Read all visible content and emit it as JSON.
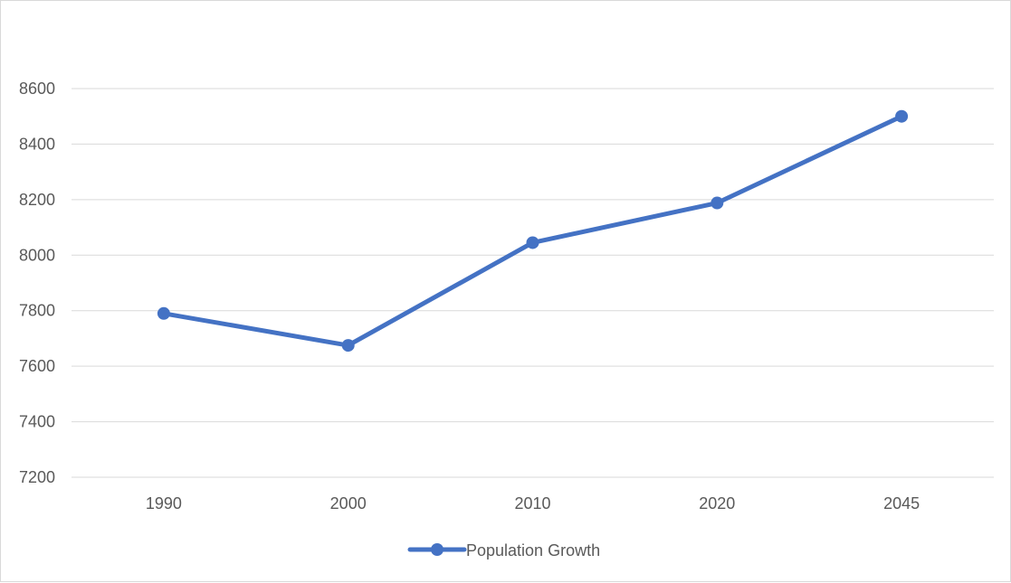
{
  "chart_data": {
    "type": "line",
    "categories": [
      "1990",
      "2000",
      "2010",
      "2020",
      "2045"
    ],
    "series": [
      {
        "name": "Population Growth",
        "values": [
          7790,
          7675,
          8045,
          8188,
          8500
        ],
        "color": "#4472c4"
      }
    ],
    "ylim": [
      7200,
      8600
    ],
    "yticks": [
      "7200",
      "7400",
      "7600",
      "7800",
      "8000",
      "8200",
      "8400",
      "8600"
    ],
    "grid": true,
    "legend_position": "bottom",
    "gridline_color": "#d9d9d9",
    "text_color": "#595959"
  }
}
